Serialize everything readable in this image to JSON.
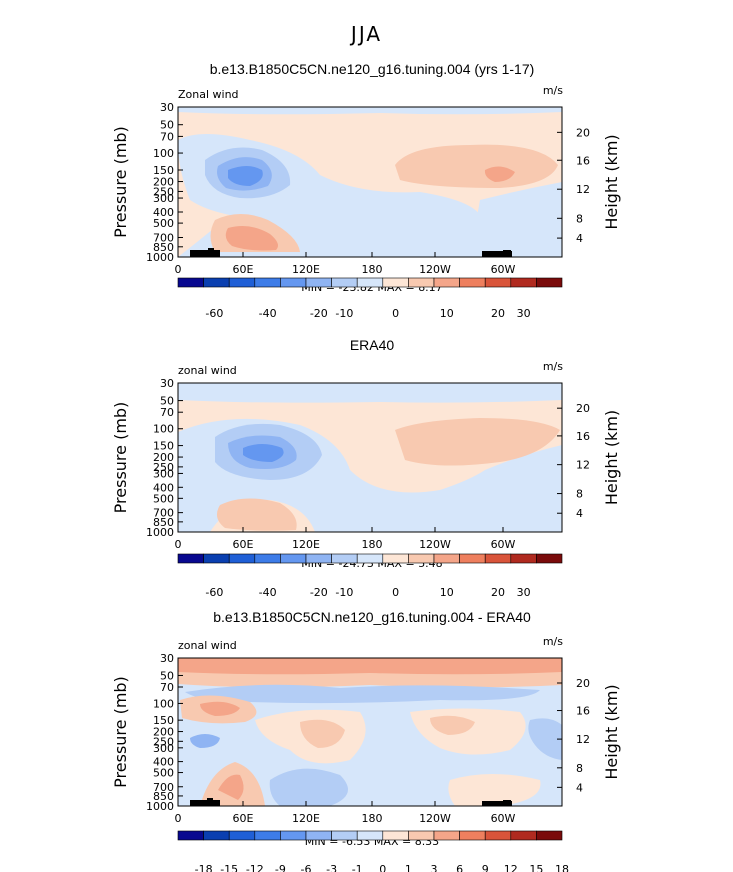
{
  "page": {
    "title": "JJA"
  },
  "colorbars": {
    "full": {
      "colors": [
        "#08088f",
        "#0a3fb0",
        "#1f5fd6",
        "#3d7ce8",
        "#6497f0",
        "#8fb4f3",
        "#b3cdf5",
        "#d6e6fa",
        "#fde6d6",
        "#f8c9b0",
        "#f4a589",
        "#ee7f5e",
        "#d9543a",
        "#b02a1f",
        "#7a0b0b"
      ],
      "labels": [
        "-60",
        "-40",
        "-20",
        "-10",
        "0",
        "10",
        "20",
        "30"
      ]
    },
    "diff": {
      "colors": [
        "#08088f",
        "#0a3fb0",
        "#1f5fd6",
        "#3d7ce8",
        "#6497f0",
        "#8fb4f3",
        "#b3cdf5",
        "#d6e6fa",
        "#fde6d6",
        "#f8c9b0",
        "#f4a589",
        "#ee7f5e",
        "#d9543a",
        "#b02a1f",
        "#7a0b0b"
      ],
      "labels": [
        "-18",
        "-15",
        "-12",
        "-9",
        "-6",
        "-3",
        "-1",
        "0",
        "1",
        "3",
        "6",
        "9",
        "12",
        "15",
        "18"
      ]
    }
  },
  "chart_data": [
    {
      "type": "heatmap",
      "title": "b.e13.B1850C5CN.ne120_g16.tuning.004 (yrs 1-17)",
      "left_label": "Zonal wind",
      "units": "m/s",
      "ylabel": "Pressure (mb)",
      "ylabel_right": "Height (km)",
      "x_ticks": [
        "0",
        "60E",
        "120E",
        "180",
        "120W",
        "60W"
      ],
      "y_ticks": [
        "30",
        "50",
        "70",
        "100",
        "150",
        "200",
        "250",
        "300",
        "400",
        "500",
        "700",
        "850",
        "1000"
      ],
      "height_ticks": [
        "20",
        "16",
        "12",
        "8",
        "4"
      ],
      "stats": "MIN = -23.82   MAX =   8.17",
      "min": -23.82,
      "max": 8.17,
      "colorbar": "full",
      "has_topography": true
    },
    {
      "type": "heatmap",
      "title": "ERA40",
      "left_label": "zonal wind",
      "units": "m/s",
      "ylabel": "Pressure (mb)",
      "ylabel_right": "Height (km)",
      "x_ticks": [
        "0",
        "60E",
        "120E",
        "180",
        "120W",
        "60W"
      ],
      "y_ticks": [
        "30",
        "50",
        "70",
        "100",
        "150",
        "200",
        "250",
        "300",
        "400",
        "500",
        "700",
        "850",
        "1000"
      ],
      "height_ticks": [
        "20",
        "16",
        "12",
        "8",
        "4"
      ],
      "stats": "MIN = -24.73   MAX =   5.48",
      "min": -24.73,
      "max": 5.48,
      "colorbar": "full",
      "has_topography": false
    },
    {
      "type": "heatmap",
      "title": "b.e13.B1850C5CN.ne120_g16.tuning.004 - ERA40",
      "left_label": "zonal wind",
      "units": "m/s",
      "ylabel": "Pressure (mb)",
      "ylabel_right": "Height (km)",
      "x_ticks": [
        "0",
        "60E",
        "120E",
        "180",
        "120W",
        "60W"
      ],
      "y_ticks": [
        "30",
        "50",
        "70",
        "100",
        "150",
        "200",
        "250",
        "300",
        "400",
        "500",
        "700",
        "850",
        "1000"
      ],
      "height_ticks": [
        "20",
        "16",
        "12",
        "8",
        "4"
      ],
      "stats": "MIN =  -6.53   MAX =   8.33",
      "min": -6.53,
      "max": 8.33,
      "colorbar": "diff",
      "has_topography": true
    }
  ]
}
